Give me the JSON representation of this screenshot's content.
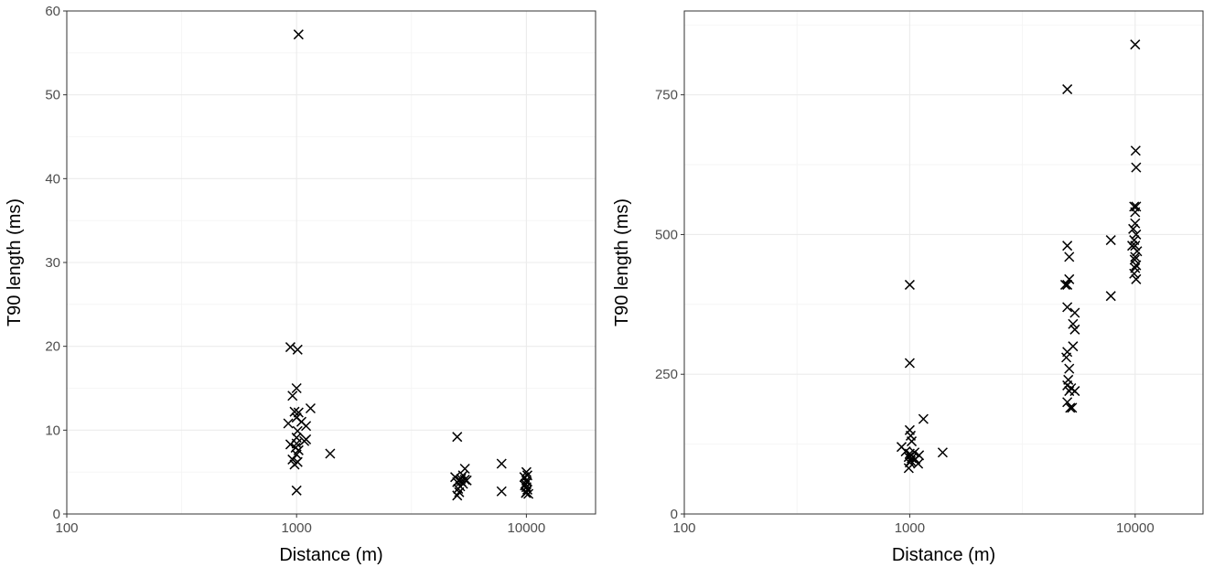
{
  "chart_data": [
    {
      "type": "scatter",
      "xlabel": "Distance (m)",
      "ylabel": "T90 length (ms)",
      "x_scale": "log",
      "xlim": [
        100,
        20000
      ],
      "ylim": [
        0,
        60
      ],
      "x_ticks": [
        100,
        1000,
        10000
      ],
      "x_tick_labels": [
        "100",
        "1000",
        "10000"
      ],
      "y_ticks": [
        0,
        10,
        20,
        30,
        40,
        50,
        60
      ],
      "y_tick_labels": [
        "0",
        "10",
        "20",
        "30",
        "40",
        "50",
        "60"
      ],
      "grid": true,
      "marker": "x",
      "series": [
        {
          "points": [
            [
              1020,
              57.2
            ],
            [
              940,
              19.9
            ],
            [
              1010,
              19.6
            ],
            [
              960,
              14.1
            ],
            [
              1000,
              15.0
            ],
            [
              980,
              12.2
            ],
            [
              1020,
              12.1
            ],
            [
              1150,
              12.6
            ],
            [
              1000,
              11.5
            ],
            [
              920,
              10.8
            ],
            [
              1050,
              11.0
            ],
            [
              1100,
              10.5
            ],
            [
              1010,
              9.9
            ],
            [
              1000,
              9.1
            ],
            [
              940,
              8.3
            ],
            [
              1080,
              8.7
            ],
            [
              1100,
              8.9
            ],
            [
              1000,
              8.4
            ],
            [
              990,
              7.9
            ],
            [
              1020,
              7.6
            ],
            [
              1000,
              7.1
            ],
            [
              960,
              6.5
            ],
            [
              1010,
              6.2
            ],
            [
              980,
              5.9
            ],
            [
              1400,
              7.2
            ],
            [
              1000,
              2.8
            ],
            [
              5000,
              9.2
            ],
            [
              4900,
              4.4
            ],
            [
              5100,
              4.0
            ],
            [
              5200,
              4.2
            ],
            [
              5400,
              5.4
            ],
            [
              5300,
              4.6
            ],
            [
              5000,
              3.8
            ],
            [
              5150,
              3.3
            ],
            [
              5050,
              3.0
            ],
            [
              5100,
              2.6
            ],
            [
              5000,
              2.2
            ],
            [
              5300,
              3.6
            ],
            [
              5400,
              4.1
            ],
            [
              5200,
              3.9
            ],
            [
              5500,
              4.0
            ],
            [
              7800,
              6.0
            ],
            [
              7800,
              2.7
            ],
            [
              9800,
              4.4
            ],
            [
              10000,
              5.0
            ],
            [
              10100,
              4.6
            ],
            [
              10000,
              4.0
            ],
            [
              9900,
              3.6
            ],
            [
              10000,
              3.2
            ],
            [
              10100,
              2.9
            ],
            [
              10000,
              2.6
            ],
            [
              9950,
              2.5
            ],
            [
              10200,
              2.4
            ],
            [
              10050,
              3.8
            ],
            [
              9850,
              3.4
            ]
          ]
        }
      ]
    },
    {
      "type": "scatter",
      "xlabel": "Distance (m)",
      "ylabel": "T90 length (ms)",
      "x_scale": "log",
      "xlim": [
        100,
        20000
      ],
      "ylim": [
        0,
        900
      ],
      "x_ticks": [
        100,
        1000,
        10000
      ],
      "x_tick_labels": [
        "100",
        "1000",
        "10000"
      ],
      "y_ticks": [
        0,
        250,
        500,
        750
      ],
      "y_tick_labels": [
        "0",
        "250",
        "500",
        "750"
      ],
      "grid": true,
      "marker": "x",
      "series": [
        {
          "points": [
            [
              1000,
              410
            ],
            [
              1000,
              270
            ],
            [
              1150,
              170
            ],
            [
              1000,
              150
            ],
            [
              1010,
              140
            ],
            [
              1020,
              130
            ],
            [
              920,
              120
            ],
            [
              960,
              112
            ],
            [
              1000,
              108
            ],
            [
              1050,
              110
            ],
            [
              1100,
              105
            ],
            [
              990,
              102
            ],
            [
              1020,
              100
            ],
            [
              1060,
              98
            ],
            [
              1010,
              95
            ],
            [
              1000,
              92
            ],
            [
              1090,
              90
            ],
            [
              990,
              82
            ],
            [
              1400,
              110
            ],
            [
              5000,
              760
            ],
            [
              5000,
              480
            ],
            [
              5100,
              460
            ],
            [
              4900,
              410
            ],
            [
              5000,
              410
            ],
            [
              5100,
              420
            ],
            [
              5000,
              370
            ],
            [
              5400,
              360
            ],
            [
              5300,
              340
            ],
            [
              5400,
              330
            ],
            [
              5300,
              300
            ],
            [
              5000,
              290
            ],
            [
              4950,
              280
            ],
            [
              5100,
              260
            ],
            [
              5050,
              240
            ],
            [
              5000,
              230
            ],
            [
              5200,
              225
            ],
            [
              5100,
              220
            ],
            [
              5400,
              220
            ],
            [
              5000,
              200
            ],
            [
              5150,
              190
            ],
            [
              5250,
              190
            ],
            [
              7800,
              490
            ],
            [
              7800,
              390
            ],
            [
              10000,
              840
            ],
            [
              10050,
              650
            ],
            [
              10100,
              620
            ],
            [
              9900,
              550
            ],
            [
              10100,
              550
            ],
            [
              10000,
              540
            ],
            [
              10000,
              520
            ],
            [
              9800,
              510
            ],
            [
              10100,
              500
            ],
            [
              9900,
              490
            ],
            [
              10000,
              480
            ],
            [
              9700,
              480
            ],
            [
              10200,
              470
            ],
            [
              10000,
              460
            ],
            [
              9950,
              455
            ],
            [
              10100,
              445
            ],
            [
              10000,
              440
            ],
            [
              9900,
              430
            ],
            [
              10100,
              420
            ]
          ]
        }
      ]
    }
  ]
}
